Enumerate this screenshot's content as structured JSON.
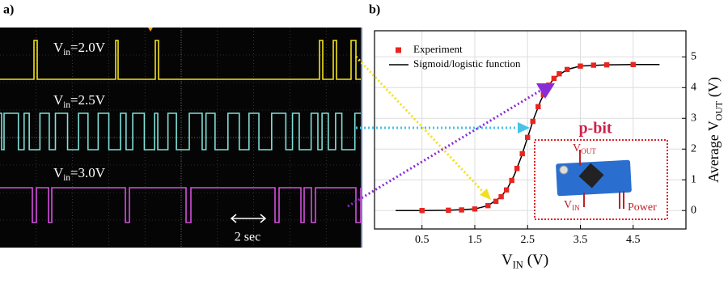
{
  "panel_a": {
    "label": "a)",
    "scale_bar": "2 sec",
    "traces": [
      {
        "symbol": "V",
        "subscript": "in",
        "rest": "=2.0V"
      },
      {
        "symbol": "V",
        "subscript": "in",
        "rest": "=2.5V"
      },
      {
        "symbol": "V",
        "subscript": "in",
        "rest": "=3.0V"
      }
    ]
  },
  "panel_b": {
    "label": "b)",
    "inset": {
      "title": "p-bit",
      "vout": {
        "symbol": "V",
        "subscript": "OUT"
      },
      "vin": {
        "symbol": "V",
        "subscript": "IN"
      },
      "power": "Power"
    }
  },
  "chart_data": {
    "type": "scatter",
    "xlabel": {
      "symbol": "V",
      "subscript": "IN",
      "unit": "(V)"
    },
    "ylabel": {
      "prefix": "Average V",
      "subscript": "OUT",
      "unit": "(V)"
    },
    "xlim": [
      -0.4,
      5.5
    ],
    "ylim": [
      -0.6,
      5.85
    ],
    "xticks": [
      0.5,
      1.5,
      2.5,
      3.5,
      4.5
    ],
    "yticks": [
      0,
      1,
      2,
      3,
      4,
      5
    ],
    "grid": true,
    "legend": "upper left",
    "series": [
      {
        "name": "Experiment",
        "type": "scatter",
        "color": "#e8251f",
        "x": [
          0.5,
          1.0,
          1.25,
          1.5,
          1.75,
          1.9,
          2.0,
          2.1,
          2.2,
          2.3,
          2.4,
          2.5,
          2.6,
          2.7,
          2.8,
          2.9,
          3.0,
          3.1,
          3.25,
          3.5,
          3.75,
          4.0,
          4.5
        ],
        "values": [
          0.0,
          0.01,
          0.02,
          0.05,
          0.16,
          0.3,
          0.45,
          0.67,
          0.98,
          1.37,
          1.85,
          2.38,
          2.9,
          3.38,
          3.77,
          4.08,
          4.3,
          4.45,
          4.59,
          4.7,
          4.73,
          4.74,
          4.75
        ]
      },
      {
        "name": "Sigmoid/logistic function",
        "type": "line",
        "color": "#000000",
        "x": [
          0,
          0.5,
          1,
          1.5,
          1.75,
          2,
          2.125,
          2.25,
          2.375,
          2.5,
          2.625,
          2.75,
          2.875,
          3,
          3.25,
          3.5,
          4,
          4.5,
          5
        ],
        "values": [
          0.0,
          0.0,
          0.01,
          0.05,
          0.16,
          0.45,
          0.74,
          1.16,
          1.72,
          2.38,
          3.03,
          3.58,
          4.01,
          4.3,
          4.59,
          4.7,
          4.74,
          4.75,
          4.75
        ]
      }
    ]
  }
}
